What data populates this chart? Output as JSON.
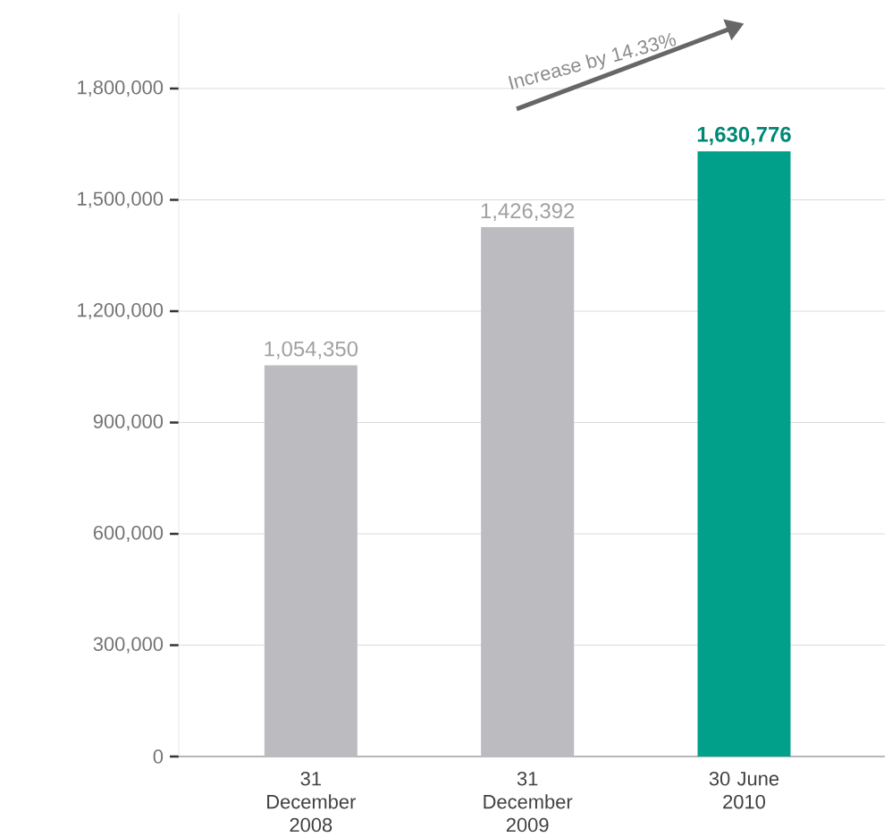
{
  "chart_data": {
    "type": "bar",
    "categories": [
      "31 December 2008",
      "31 December 2009",
      "30 June 2010"
    ],
    "values": [
      1054350,
      1426392,
      1630776
    ],
    "colors": [
      "#bcbcc0",
      "#bcbcc0",
      "#00a08a"
    ],
    "value_labels": [
      "1,054,350",
      "1,426,392",
      "**1,630,776**"
    ],
    "ylim": [
      0,
      2000000
    ],
    "yticks": [
      0,
      {
        "value": 300000,
        "label": "300,000"
      },
      {
        "value": 600000,
        "label": "600,000"
      },
      {
        "value": 900000,
        "label": "900,000"
      },
      {
        "value": 1200000,
        "label": "1,200,000"
      },
      {
        "value": 1500000,
        "label": "1,500,000"
      },
      {
        "value": 1800000,
        "label": "1,800,000"
      }
    ],
    "grid": "y",
    "annotations": [
      "Increase by 14.33%"
    ]
  }
}
